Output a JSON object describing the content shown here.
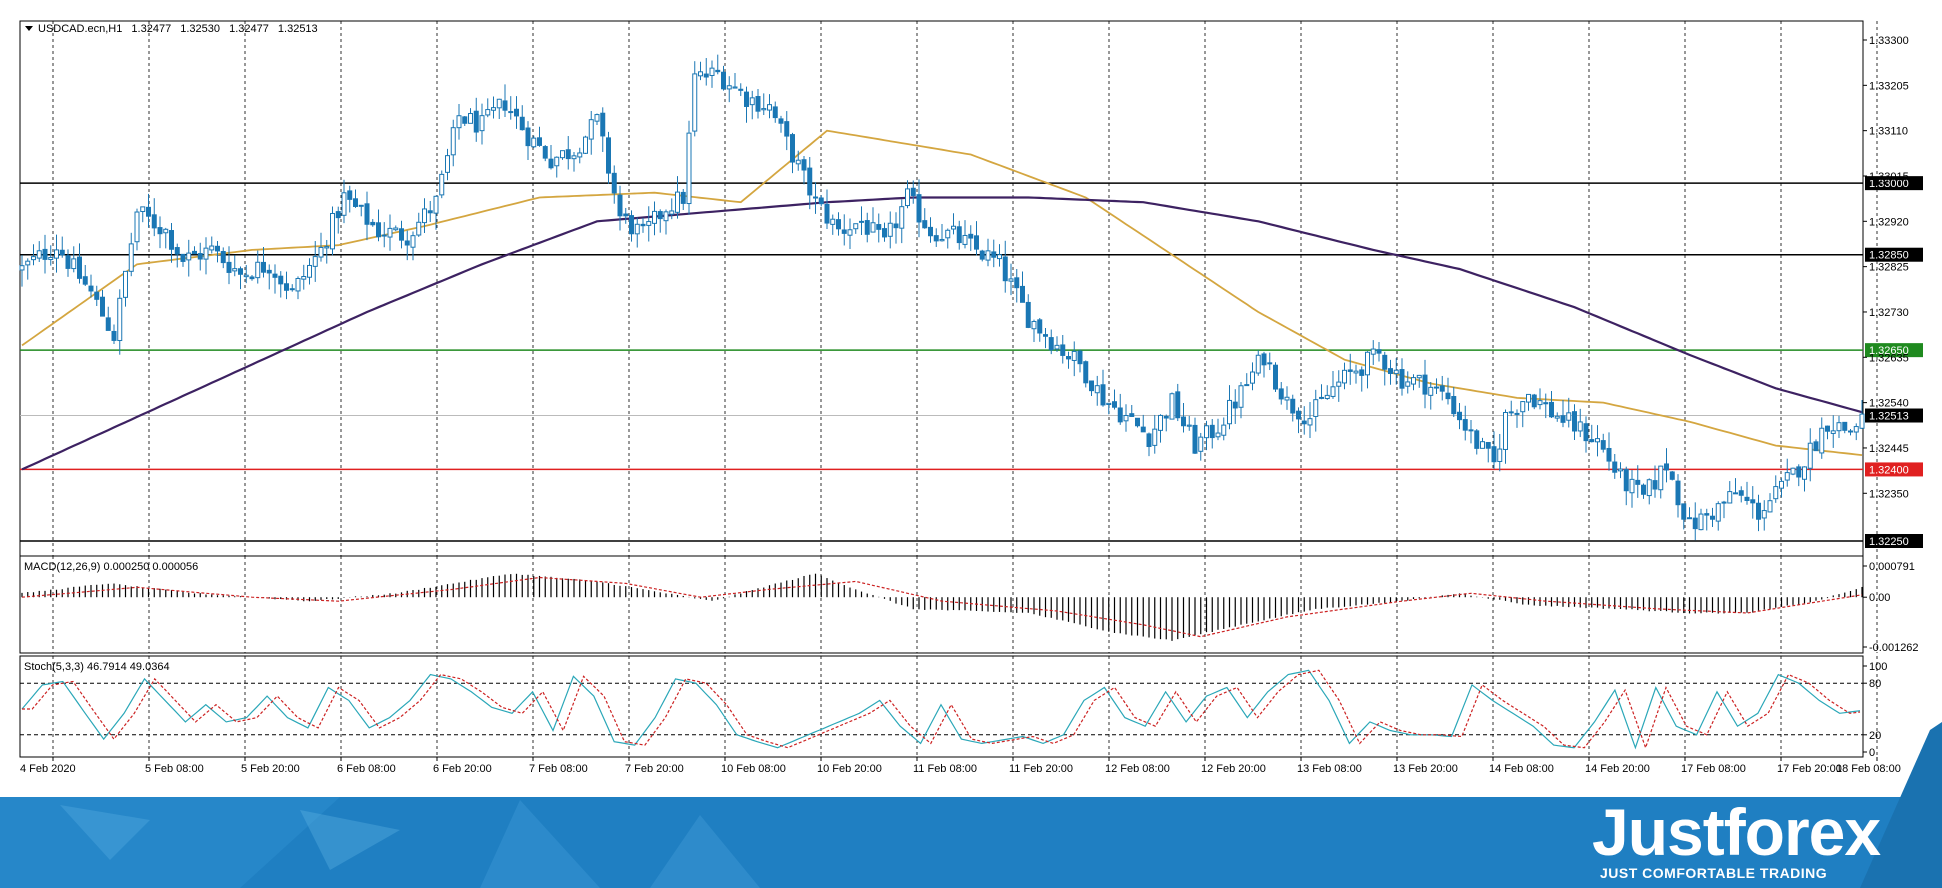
{
  "colors": {
    "candle": "#1a77b4",
    "sma_fast": "#d4a640",
    "sma_slow": "#3d2262",
    "macd_hist": "#000000",
    "macd_signal": "#cc2222",
    "stoch_main": "#2aa7b8",
    "stoch_signal": "#cc2222",
    "level_black": "#000000",
    "level_green": "#1f8a1f",
    "level_red": "#e02020",
    "banner_bg": "#1f7fc2"
  },
  "chart_data": {
    "type": "candlestick",
    "header": {
      "symbol": "USDCAD.ecn,H1",
      "ohlc": [
        "1.32477",
        "1.32530",
        "1.32477",
        "1.32513"
      ]
    },
    "price_axis": {
      "range": [
        1.3225,
        1.3335
      ],
      "ticks": [
        "1.33300",
        "1.33205",
        "1.33110",
        "1.33015",
        "1.32920",
        "1.32825",
        "1.32730",
        "1.32635",
        "1.32540",
        "1.32445",
        "1.32350"
      ],
      "tick_values": [
        1.333,
        1.33205,
        1.3311,
        1.33015,
        1.3292,
        1.32825,
        1.3273,
        1.32635,
        1.3254,
        1.32445,
        1.3235
      ]
    },
    "levels": [
      {
        "label": "1.33000",
        "value": 1.33,
        "color": "#000000"
      },
      {
        "label": "1.32850",
        "value": 1.3285,
        "color": "#000000"
      },
      {
        "label": "1.32650",
        "value": 1.3265,
        "color": "#1f8a1f"
      },
      {
        "label": "1.32400",
        "value": 1.324,
        "color": "#e02020"
      },
      {
        "label": "1.32250",
        "value": 1.3225,
        "color": "#000000"
      }
    ],
    "current_price": {
      "label": "1.32513",
      "value": 1.32513
    },
    "time_axis": [
      "4 Feb 2020",
      "5 Feb 08:00",
      "5 Feb 20:00",
      "6 Feb 08:00",
      "6 Feb 20:00",
      "7 Feb 08:00",
      "7 Feb 20:00",
      "10 Feb 08:00",
      "10 Feb 20:00",
      "11 Feb 08:00",
      "11 Feb 20:00",
      "12 Feb 08:00",
      "12 Feb 20:00",
      "13 Feb 08:00",
      "13 Feb 20:00",
      "14 Feb 08:00",
      "14 Feb 20:00",
      "17 Feb 08:00",
      "17 Feb 20:00",
      "18 Feb 08:00"
    ],
    "close_anchors": [
      [
        0,
        1.3282
      ],
      [
        6,
        1.3287
      ],
      [
        12,
        1.3277
      ],
      [
        16,
        1.3268
      ],
      [
        20,
        1.3294
      ],
      [
        25,
        1.329
      ],
      [
        28,
        1.3284
      ],
      [
        33,
        1.3286
      ],
      [
        38,
        1.3281
      ],
      [
        43,
        1.3283
      ],
      [
        47,
        1.3277
      ],
      [
        52,
        1.3286
      ],
      [
        56,
        1.3297
      ],
      [
        62,
        1.329
      ],
      [
        67,
        1.3289
      ],
      [
        72,
        1.3296
      ],
      [
        76,
        1.3314
      ],
      [
        80,
        1.3312
      ],
      [
        84,
        1.3317
      ],
      [
        88,
        1.331
      ],
      [
        92,
        1.3305
      ],
      [
        96,
        1.3307
      ],
      [
        100,
        1.3313
      ],
      [
        104,
        1.3293
      ],
      [
        108,
        1.3289
      ],
      [
        112,
        1.3295
      ],
      [
        115,
        1.3297
      ],
      [
        117,
        1.3322
      ],
      [
        121,
        1.3323
      ],
      [
        126,
        1.3318
      ],
      [
        130,
        1.3316
      ],
      [
        134,
        1.3306
      ],
      [
        138,
        1.3296
      ],
      [
        142,
        1.329
      ],
      [
        146,
        1.3292
      ],
      [
        150,
        1.3287
      ],
      [
        154,
        1.3297
      ],
      [
        158,
        1.329
      ],
      [
        162,
        1.3289
      ],
      [
        166,
        1.3286
      ],
      [
        170,
        1.3283
      ],
      [
        175,
        1.3272
      ],
      [
        180,
        1.3266
      ],
      [
        184,
        1.3262
      ],
      [
        188,
        1.3255
      ],
      [
        192,
        1.3251
      ],
      [
        196,
        1.3247
      ],
      [
        200,
        1.3254
      ],
      [
        204,
        1.3245
      ],
      [
        208,
        1.3249
      ],
      [
        212,
        1.3256
      ],
      [
        216,
        1.3264
      ],
      [
        220,
        1.3254
      ],
      [
        224,
        1.3251
      ],
      [
        228,
        1.3257
      ],
      [
        232,
        1.3261
      ],
      [
        236,
        1.3264
      ],
      [
        240,
        1.3259
      ],
      [
        244,
        1.3258
      ],
      [
        248,
        1.3255
      ],
      [
        252,
        1.3247
      ],
      [
        256,
        1.3241
      ],
      [
        258,
        1.3251
      ],
      [
        262,
        1.3256
      ],
      [
        266,
        1.3252
      ],
      [
        270,
        1.3249
      ],
      [
        274,
        1.3246
      ],
      [
        278,
        1.3238
      ],
      [
        282,
        1.3234
      ],
      [
        286,
        1.3241
      ],
      [
        290,
        1.3228
      ],
      [
        294,
        1.3231
      ],
      [
        298,
        1.3235
      ],
      [
        302,
        1.3231
      ],
      [
        306,
        1.3236
      ],
      [
        310,
        1.3242
      ],
      [
        314,
        1.325
      ],
      [
        318,
        1.3248
      ],
      [
        320,
        1.3251
      ]
    ],
    "sma_fast_anchors": [
      [
        0,
        1.3266
      ],
      [
        20,
        1.3283
      ],
      [
        40,
        1.3286
      ],
      [
        55,
        1.3287
      ],
      [
        70,
        1.3291
      ],
      [
        90,
        1.3297
      ],
      [
        110,
        1.3298
      ],
      [
        125,
        1.3296
      ],
      [
        140,
        1.3311
      ],
      [
        150,
        1.3309
      ],
      [
        165,
        1.3306
      ],
      [
        185,
        1.3297
      ],
      [
        200,
        1.3285
      ],
      [
        215,
        1.3273
      ],
      [
        230,
        1.3263
      ],
      [
        245,
        1.3258
      ],
      [
        260,
        1.3255
      ],
      [
        275,
        1.3254
      ],
      [
        290,
        1.325
      ],
      [
        305,
        1.3245
      ],
      [
        320,
        1.3243
      ]
    ],
    "sma_slow_anchors": [
      [
        0,
        1.324
      ],
      [
        20,
        1.3251
      ],
      [
        40,
        1.3262
      ],
      [
        60,
        1.3273
      ],
      [
        80,
        1.3283
      ],
      [
        100,
        1.3292
      ],
      [
        120,
        1.3294
      ],
      [
        140,
        1.3296
      ],
      [
        155,
        1.3297
      ],
      [
        175,
        1.3297
      ],
      [
        195,
        1.3296
      ],
      [
        215,
        1.3292
      ],
      [
        235,
        1.3286
      ],
      [
        250,
        1.3282
      ],
      [
        270,
        1.3274
      ],
      [
        290,
        1.3264
      ],
      [
        305,
        1.3257
      ],
      [
        320,
        1.3252
      ]
    ],
    "macd": {
      "label": "MACD(12,26,9) 0.000250 0.000056",
      "range": [
        -0.001262,
        0.000791
      ],
      "ticks": [
        "0.000791",
        "0.00",
        "-0.001262"
      ],
      "tick_values": [
        0.000791,
        0.0,
        -0.001262
      ],
      "hist_anchors": [
        [
          0,
          0.0001
        ],
        [
          15,
          0.00035
        ],
        [
          30,
          0.0001
        ],
        [
          50,
          -0.0001
        ],
        [
          65,
          0.0001
        ],
        [
          85,
          0.0006
        ],
        [
          100,
          0.0004
        ],
        [
          112,
          0.0001
        ],
        [
          120,
          -0.0001
        ],
        [
          130,
          0.0003
        ],
        [
          138,
          0.0006
        ],
        [
          145,
          0.0002
        ],
        [
          155,
          -0.0003
        ],
        [
          175,
          -0.0004
        ],
        [
          190,
          -0.0009
        ],
        [
          200,
          -0.0011
        ],
        [
          212,
          -0.0007
        ],
        [
          225,
          -0.0003
        ],
        [
          240,
          -0.0001
        ],
        [
          250,
          0.0001
        ],
        [
          262,
          -0.0002
        ],
        [
          278,
          -0.0003
        ],
        [
          290,
          -0.0004
        ],
        [
          300,
          -0.0004
        ],
        [
          312,
          -0.0001
        ],
        [
          320,
          0.00025
        ]
      ],
      "signal_anchors": [
        [
          0,
          0.0
        ],
        [
          20,
          0.00025
        ],
        [
          40,
          0.0
        ],
        [
          55,
          -0.0001
        ],
        [
          75,
          0.0002
        ],
        [
          90,
          0.0005
        ],
        [
          105,
          0.00035
        ],
        [
          118,
          0.0
        ],
        [
          130,
          0.0002
        ],
        [
          145,
          0.0004
        ],
        [
          160,
          -0.0001
        ],
        [
          180,
          -0.00035
        ],
        [
          195,
          -0.0007
        ],
        [
          205,
          -0.001
        ],
        [
          220,
          -0.0005
        ],
        [
          240,
          -0.0001
        ],
        [
          252,
          0.0001
        ],
        [
          265,
          -0.0001
        ],
        [
          285,
          -0.0003
        ],
        [
          300,
          -0.0004
        ],
        [
          320,
          6e-05
        ]
      ]
    },
    "stoch": {
      "label": "Stoch(5,3,3) 46.7914 49.0364",
      "range": [
        0,
        100
      ],
      "ticks": [
        "100",
        "80",
        "20",
        "0"
      ],
      "tick_values": [
        100,
        80,
        20,
        0
      ],
      "main_anchors": [
        [
          0,
          50
        ],
        [
          4,
          78
        ],
        [
          8,
          82
        ],
        [
          12,
          48
        ],
        [
          16,
          15
        ],
        [
          20,
          45
        ],
        [
          24,
          85
        ],
        [
          28,
          60
        ],
        [
          32,
          35
        ],
        [
          36,
          55
        ],
        [
          40,
          35
        ],
        [
          44,
          40
        ],
        [
          48,
          65
        ],
        [
          52,
          40
        ],
        [
          56,
          28
        ],
        [
          60,
          75
        ],
        [
          64,
          60
        ],
        [
          68,
          28
        ],
        [
          72,
          40
        ],
        [
          76,
          60
        ],
        [
          80,
          90
        ],
        [
          84,
          85
        ],
        [
          88,
          70
        ],
        [
          92,
          52
        ],
        [
          96,
          45
        ],
        [
          100,
          70
        ],
        [
          104,
          25
        ],
        [
          108,
          88
        ],
        [
          112,
          65
        ],
        [
          116,
          12
        ],
        [
          120,
          8
        ],
        [
          124,
          40
        ],
        [
          128,
          85
        ],
        [
          132,
          80
        ],
        [
          136,
          55
        ],
        [
          140,
          20
        ],
        [
          144,
          12
        ],
        [
          148,
          5
        ],
        [
          152,
          15
        ],
        [
          156,
          25
        ],
        [
          160,
          35
        ],
        [
          164,
          45
        ],
        [
          168,
          60
        ],
        [
          172,
          30
        ],
        [
          176,
          10
        ],
        [
          180,
          55
        ],
        [
          184,
          15
        ],
        [
          188,
          10
        ],
        [
          192,
          14
        ],
        [
          196,
          18
        ],
        [
          200,
          10
        ],
        [
          204,
          20
        ],
        [
          208,
          60
        ],
        [
          212,
          75
        ],
        [
          216,
          40
        ],
        [
          220,
          30
        ],
        [
          224,
          70
        ],
        [
          228,
          35
        ],
        [
          232,
          65
        ],
        [
          236,
          75
        ],
        [
          240,
          40
        ],
        [
          244,
          70
        ],
        [
          248,
          90
        ],
        [
          252,
          95
        ],
        [
          256,
          60
        ],
        [
          260,
          10
        ],
        [
          264,
          35
        ],
        [
          268,
          25
        ],
        [
          272,
          20
        ],
        [
          276,
          20
        ],
        [
          280,
          18
        ],
        [
          284,
          78
        ],
        [
          288,
          60
        ],
        [
          292,
          45
        ],
        [
          296,
          30
        ],
        [
          300,
          8
        ],
        [
          304,
          5
        ],
        [
          308,
          35
        ],
        [
          312,
          72
        ],
        [
          316,
          5
        ],
        [
          320,
          75
        ],
        [
          324,
          30
        ],
        [
          328,
          20
        ],
        [
          332,
          70
        ],
        [
          336,
          30
        ],
        [
          340,
          45
        ],
        [
          344,
          90
        ],
        [
          348,
          80
        ],
        [
          352,
          60
        ],
        [
          356,
          45
        ],
        [
          360,
          48
        ]
      ]
    }
  },
  "banner": {
    "brand": "Justforex",
    "tagline": "JUST COMFORTABLE TRADING"
  }
}
